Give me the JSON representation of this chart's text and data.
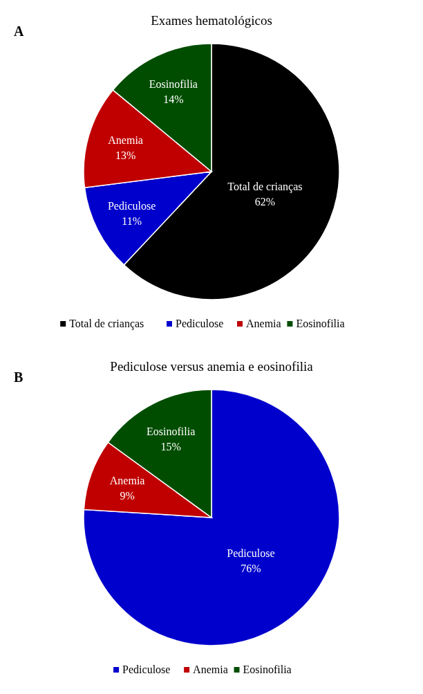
{
  "chart_data": [
    {
      "type": "pie",
      "title": "Exames hematológicos",
      "annotations": [
        "A"
      ],
      "categories": [
        "Total de crianças",
        "Pediculose",
        "Anemia",
        "Eosinofilia"
      ],
      "values": [
        62,
        11,
        13,
        14
      ],
      "value_labels": [
        "62%",
        "11%",
        "13%",
        "14%"
      ],
      "colors": [
        "#000000",
        "#0000cc",
        "#c00000",
        "#004d00"
      ],
      "legend": "bottom"
    },
    {
      "type": "pie",
      "title": "Pediculose versus anemia e eosinofilia",
      "annotations": [
        "B"
      ],
      "categories": [
        "Pediculose",
        "Anemia",
        "Eosinofilia"
      ],
      "values": [
        76,
        9,
        15
      ],
      "value_labels": [
        "76%",
        "9%",
        "15%"
      ],
      "colors": [
        "#0000cc",
        "#c00000",
        "#004d00"
      ],
      "legend": "bottom"
    }
  ]
}
